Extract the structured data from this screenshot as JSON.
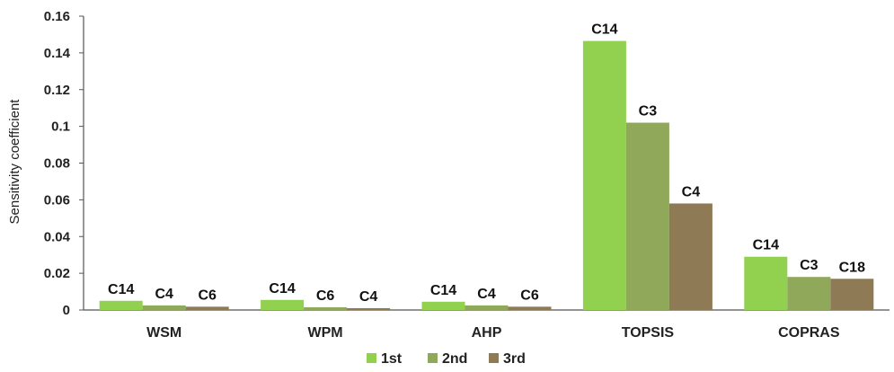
{
  "chart_data": {
    "type": "bar",
    "title": "",
    "xlabel": "",
    "ylabel": "Sensitivity coefficient",
    "ylim": [
      0,
      0.16
    ],
    "yticks": [
      "0",
      "0.02",
      "0.04",
      "0.06",
      "0.08",
      "0.1",
      "0.12",
      "0.14",
      "0.16"
    ],
    "grid": false,
    "legend_position": "bottom-center",
    "categories": [
      "WSM",
      "WPM",
      "AHP",
      "TOPSIS",
      "COPRAS"
    ],
    "series": [
      {
        "name": "1st",
        "color": "#92D050",
        "values": [
          0.005,
          0.0055,
          0.0045,
          0.1465,
          0.029
        ],
        "labels": [
          "C14",
          "C14",
          "C14",
          "C14",
          "C14"
        ]
      },
      {
        "name": "2nd",
        "color": "#8FA85A",
        "values": [
          0.0025,
          0.0015,
          0.0025,
          0.102,
          0.018
        ],
        "labels": [
          "C4",
          "C6",
          "C4",
          "C3",
          "C3"
        ]
      },
      {
        "name": "3rd",
        "color": "#8E7B55",
        "values": [
          0.0018,
          0.001,
          0.0018,
          0.058,
          0.017
        ],
        "labels": [
          "C6",
          "C4",
          "C6",
          "C4",
          "C18"
        ]
      }
    ]
  }
}
